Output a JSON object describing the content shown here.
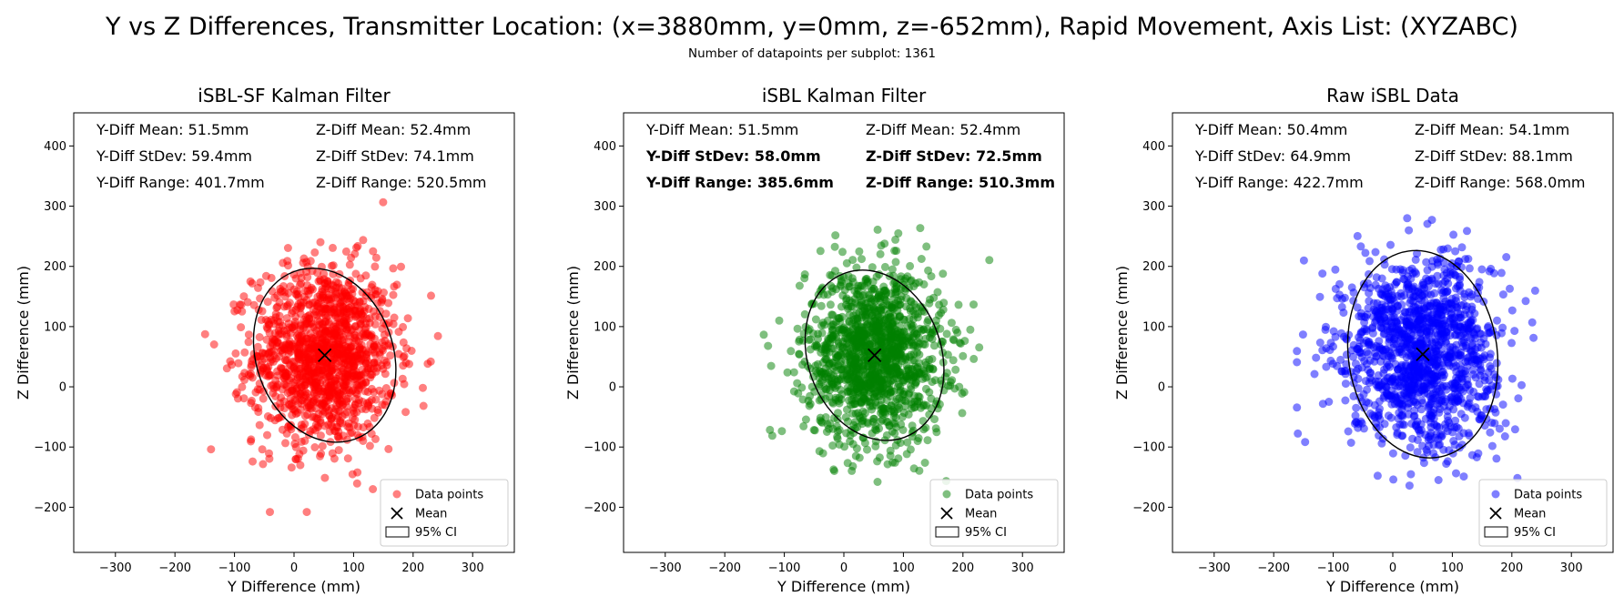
{
  "figure": {
    "title": "Y vs Z Differences, Transmitter Location: (x=3880mm, y=0mm, z=-652mm), Rapid Movement, Axis List: (XYZABC)",
    "subtitle": "Number of datapoints per subplot: 1361"
  },
  "chart_data": [
    {
      "type": "scatter",
      "title": "iSBL-SF Kalman Filter",
      "xlabel": "Y Difference (mm)",
      "ylabel": "Z Difference (mm)",
      "xlim": [
        -370,
        370
      ],
      "ylim": [
        -275,
        455
      ],
      "xticks": [
        -300,
        -200,
        -100,
        0,
        100,
        200,
        300
      ],
      "yticks": [
        -200,
        -100,
        0,
        100,
        200,
        300,
        400
      ],
      "xtick_labels": [
        "−300",
        "−200",
        "−100",
        "0",
        "100",
        "200",
        "300"
      ],
      "ytick_labels": [
        "−200",
        "−100",
        "0",
        "100",
        "200",
        "300",
        "400"
      ],
      "color": "#ff0000",
      "stats": [
        {
          "text": "Y-Diff Mean: 51.5mm",
          "bold": false
        },
        {
          "text": "Z-Diff Mean: 52.4mm",
          "bold": false
        },
        {
          "text": "Y-Diff StDev: 59.4mm",
          "bold": false
        },
        {
          "text": "Z-Diff StDev: 74.1mm",
          "bold": false
        },
        {
          "text": "Y-Diff Range: 401.7mm",
          "bold": false
        },
        {
          "text": "Z-Diff Range: 520.5mm",
          "bold": false
        }
      ],
      "mean": [
        51.5,
        52.4
      ],
      "std": [
        59.4,
        74.1
      ],
      "range": [
        401.7,
        520.5
      ],
      "ellipse": {
        "cx": 51.5,
        "cy": 52.4,
        "rx": 115,
        "ry": 148,
        "angle_deg": 20
      },
      "legend_placement": "lower-right",
      "legend": [
        "Data points",
        "Mean",
        "95% CI"
      ]
    },
    {
      "type": "scatter",
      "title": "iSBL Kalman Filter",
      "xlabel": "Y Difference (mm)",
      "ylabel": "Z Difference (mm)",
      "xlim": [
        -370,
        370
      ],
      "ylim": [
        -275,
        455
      ],
      "xticks": [
        -300,
        -200,
        -100,
        0,
        100,
        200,
        300
      ],
      "yticks": [
        -200,
        -100,
        0,
        100,
        200,
        300,
        400
      ],
      "xtick_labels": [
        "−300",
        "−200",
        "−100",
        "0",
        "100",
        "200",
        "300"
      ],
      "ytick_labels": [
        "−200",
        "−100",
        "0",
        "100",
        "200",
        "300",
        "400"
      ],
      "color": "#008000",
      "stats": [
        {
          "text": "Y-Diff Mean: 51.5mm",
          "bold": false
        },
        {
          "text": "Z-Diff Mean: 52.4mm",
          "bold": false
        },
        {
          "text": "Y-Diff StDev: 58.0mm",
          "bold": true
        },
        {
          "text": "Z-Diff StDev: 72.5mm",
          "bold": true
        },
        {
          "text": "Y-Diff Range: 385.6mm",
          "bold": true
        },
        {
          "text": "Z-Diff Range: 510.3mm",
          "bold": true
        }
      ],
      "mean": [
        51.5,
        52.4
      ],
      "std": [
        58.0,
        72.5
      ],
      "range": [
        385.6,
        510.3
      ],
      "ellipse": {
        "cx": 51.5,
        "cy": 52.4,
        "rx": 112,
        "ry": 145,
        "angle_deg": 20
      },
      "legend_placement": "lower-right",
      "legend": [
        "Data points",
        "Mean",
        "95% CI"
      ]
    },
    {
      "type": "scatter",
      "title": "Raw iSBL Data",
      "xlabel": "Y Difference (mm)",
      "ylabel": "Z Difference (mm)",
      "xlim": [
        -370,
        370
      ],
      "ylim": [
        -275,
        455
      ],
      "xticks": [
        -300,
        -200,
        -100,
        0,
        100,
        200,
        300
      ],
      "yticks": [
        -200,
        -100,
        0,
        100,
        200,
        300,
        400
      ],
      "xtick_labels": [
        "−300",
        "−200",
        "−100",
        "0",
        "100",
        "200",
        "300"
      ],
      "ytick_labels": [
        "−200",
        "−100",
        "0",
        "100",
        "200",
        "300",
        "400"
      ],
      "color": "#0000ff",
      "stats": [
        {
          "text": "Y-Diff Mean: 50.4mm",
          "bold": false
        },
        {
          "text": "Z-Diff Mean: 54.1mm",
          "bold": false
        },
        {
          "text": "Y-Diff StDev: 64.9mm",
          "bold": false
        },
        {
          "text": "Z-Diff StDev: 88.1mm",
          "bold": false
        },
        {
          "text": "Y-Diff Range: 422.7mm",
          "bold": false
        },
        {
          "text": "Z-Diff Range: 568.0mm",
          "bold": false
        }
      ],
      "mean": [
        50.4,
        54.1
      ],
      "std": [
        64.9,
        88.1
      ],
      "range": [
        422.7,
        568.0
      ],
      "ellipse": {
        "cx": 50.4,
        "cy": 54.1,
        "rx": 125,
        "ry": 173,
        "angle_deg": 8
      },
      "legend_placement": "lower-right",
      "legend": [
        "Data points",
        "Mean",
        "95% CI"
      ]
    }
  ]
}
